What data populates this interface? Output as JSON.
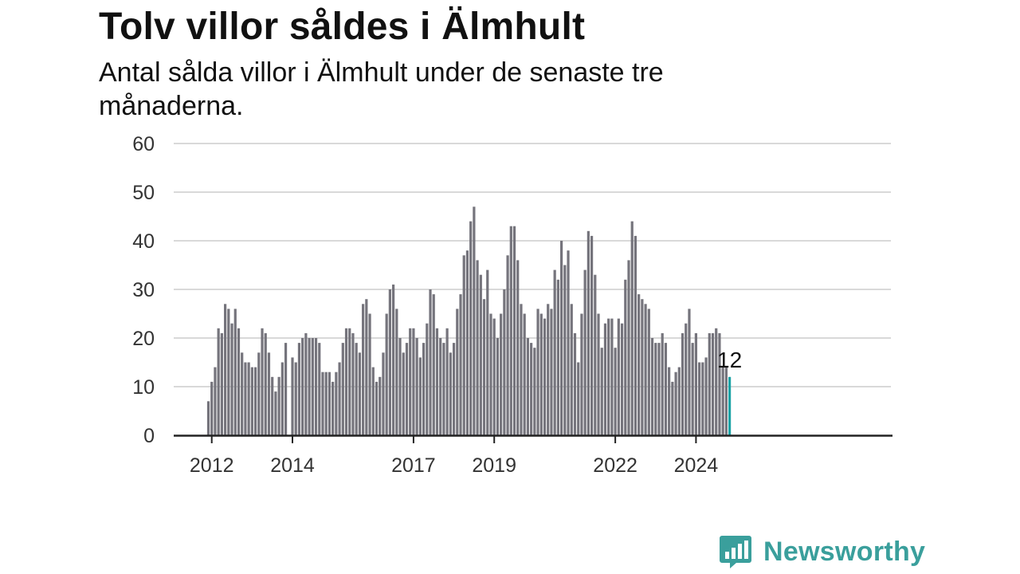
{
  "title": "Tolv villor såldes i Älmhult",
  "subtitle": "Antal sålda villor i Älmhult under de senaste tre månaderna.",
  "brand": {
    "name": "Newsworthy",
    "icon": "bar-chart-speech-bubble-icon",
    "color": "#3a9f9c"
  },
  "colors": {
    "bar": "#75747c",
    "highlight": "#1aa3a6",
    "grid": "#d9d9d9",
    "axis": "#222222"
  },
  "chart_data": {
    "type": "bar",
    "ylim": [
      0,
      60
    ],
    "yticks": [
      0,
      10,
      20,
      30,
      40,
      50,
      60
    ],
    "xticks": [
      "2012",
      "2014",
      "2017",
      "2019",
      "2022",
      "2024"
    ],
    "start_month": "2011-12",
    "grid": true,
    "values": [
      7,
      11,
      14,
      22,
      21,
      27,
      26,
      23,
      26,
      22,
      17,
      15,
      15,
      14,
      14,
      17,
      22,
      21,
      17,
      12,
      9,
      12,
      15,
      19,
      0,
      16,
      15,
      19,
      20,
      21,
      20,
      20,
      20,
      19,
      13,
      13,
      13,
      11,
      13,
      15,
      19,
      22,
      22,
      21,
      19,
      17,
      27,
      28,
      25,
      14,
      11,
      12,
      17,
      25,
      30,
      31,
      26,
      20,
      17,
      19,
      22,
      22,
      20,
      16,
      19,
      23,
      30,
      29,
      22,
      20,
      19,
      22,
      17,
      19,
      26,
      29,
      37,
      38,
      44,
      47,
      36,
      33,
      28,
      34,
      25,
      24,
      20,
      25,
      30,
      37,
      43,
      43,
      36,
      27,
      25,
      20,
      19,
      18,
      26,
      25,
      24,
      27,
      26,
      34,
      32,
      40,
      35,
      38,
      27,
      21,
      15,
      25,
      34,
      42,
      41,
      33,
      25,
      18,
      23,
      24,
      24,
      18,
      24,
      23,
      32,
      36,
      44,
      41,
      29,
      28,
      27,
      26,
      20,
      19,
      19,
      21,
      19,
      14,
      11,
      13,
      14,
      21,
      23,
      26,
      19,
      21,
      15,
      15,
      16,
      21,
      21,
      22,
      21,
      14,
      14,
      12
    ],
    "highlight_label": "12"
  }
}
